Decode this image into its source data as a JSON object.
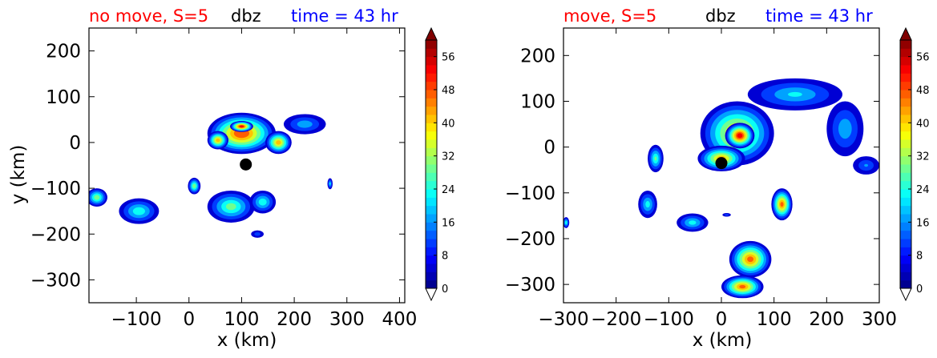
{
  "chart_data": [
    {
      "type": "contour",
      "title_left": "no move, S=5",
      "title_center": "dbz",
      "title_right": "time = 43 hr",
      "xlabel": "x (km)",
      "ylabel": "y (km)",
      "xlim": [
        -190,
        410
      ],
      "ylim": [
        -350,
        250
      ],
      "xticks": [
        -100,
        0,
        100,
        200,
        300,
        400
      ],
      "xtick_labels": [
        "−100",
        "0",
        "100",
        "200",
        "300",
        "400"
      ],
      "yticks": [
        -300,
        -200,
        -100,
        0,
        100,
        200
      ],
      "ytick_labels": [
        "−300",
        "−200",
        "−100",
        "0",
        "100",
        "200"
      ],
      "marker": {
        "x": 108,
        "y": -48
      },
      "colorbar": {
        "range": [
          0,
          60
        ],
        "ticks": [
          0,
          8,
          16,
          24,
          32,
          40,
          48,
          56
        ],
        "tick_labels": [
          "0",
          "8",
          "16",
          "24",
          "32",
          "40",
          "48",
          "56"
        ],
        "extend": "both"
      },
      "echoes": [
        {
          "x": 100,
          "y": 20,
          "rx": 65,
          "ry": 45,
          "peak": 48
        },
        {
          "x": 100,
          "y": 35,
          "rx": 22,
          "ry": 12,
          "peak": 52
        },
        {
          "x": 170,
          "y": 0,
          "rx": 25,
          "ry": 25,
          "peak": 40
        },
        {
          "x": 55,
          "y": 5,
          "rx": 20,
          "ry": 20,
          "peak": 40
        },
        {
          "x": 220,
          "y": 40,
          "rx": 40,
          "ry": 22,
          "peak": 18
        },
        {
          "x": 80,
          "y": -140,
          "rx": 45,
          "ry": 35,
          "peak": 28
        },
        {
          "x": 140,
          "y": -130,
          "rx": 25,
          "ry": 25,
          "peak": 24
        },
        {
          "x": -95,
          "y": -150,
          "rx": 38,
          "ry": 28,
          "peak": 24
        },
        {
          "x": -175,
          "y": -120,
          "rx": 20,
          "ry": 20,
          "peak": 30
        },
        {
          "x": 10,
          "y": -95,
          "rx": 12,
          "ry": 18,
          "peak": 30
        },
        {
          "x": 268,
          "y": -90,
          "rx": 5,
          "ry": 12,
          "peak": 20
        },
        {
          "x": 130,
          "y": -200,
          "rx": 12,
          "ry": 8,
          "peak": 12
        }
      ]
    },
    {
      "type": "contour",
      "title_left": "move, S=5",
      "title_center": "dbz",
      "title_right": "time = 43 hr",
      "xlabel": "x (km)",
      "ylabel": "",
      "xlim": [
        -300,
        300
      ],
      "ylim": [
        -340,
        260
      ],
      "xticks": [
        -300,
        -200,
        -100,
        0,
        100,
        200,
        300
      ],
      "xtick_labels": [
        "−300",
        "−200",
        "−100",
        "0",
        "100",
        "200",
        "300"
      ],
      "yticks": [
        -300,
        -200,
        -100,
        0,
        100,
        200
      ],
      "ytick_labels": [
        "−300",
        "−200",
        "−100",
        "0",
        "100",
        "200"
      ],
      "marker": {
        "x": 0,
        "y": -35
      },
      "colorbar": {
        "range": [
          0,
          60
        ],
        "ticks": [
          0,
          8,
          16,
          24,
          32,
          40,
          48,
          56
        ],
        "tick_labels": [
          "0",
          "8",
          "16",
          "24",
          "32",
          "40",
          "48",
          "56"
        ],
        "extend": "both"
      },
      "echoes": [
        {
          "x": 30,
          "y": 30,
          "rx": 70,
          "ry": 70,
          "peak": 40
        },
        {
          "x": 35,
          "y": 25,
          "rx": 28,
          "ry": 28,
          "peak": 52
        },
        {
          "x": 0,
          "y": -25,
          "rx": 45,
          "ry": 28,
          "peak": 40
        },
        {
          "x": 140,
          "y": 115,
          "rx": 90,
          "ry": 35,
          "peak": 20
        },
        {
          "x": 235,
          "y": 40,
          "rx": 35,
          "ry": 60,
          "peak": 18
        },
        {
          "x": 275,
          "y": -40,
          "rx": 25,
          "ry": 20,
          "peak": 14
        },
        {
          "x": 55,
          "y": -245,
          "rx": 40,
          "ry": 40,
          "peak": 44
        },
        {
          "x": 40,
          "y": -305,
          "rx": 40,
          "ry": 25,
          "peak": 44
        },
        {
          "x": 115,
          "y": -125,
          "rx": 20,
          "ry": 35,
          "peak": 44
        },
        {
          "x": -55,
          "y": -165,
          "rx": 30,
          "ry": 20,
          "peak": 22
        },
        {
          "x": -140,
          "y": -125,
          "rx": 18,
          "ry": 30,
          "peak": 22
        },
        {
          "x": -125,
          "y": -25,
          "rx": 15,
          "ry": 30,
          "peak": 26
        },
        {
          "x": -295,
          "y": -165,
          "rx": 6,
          "ry": 12,
          "peak": 24
        },
        {
          "x": 10,
          "y": -148,
          "rx": 8,
          "ry": 4,
          "peak": 12
        }
      ]
    }
  ]
}
